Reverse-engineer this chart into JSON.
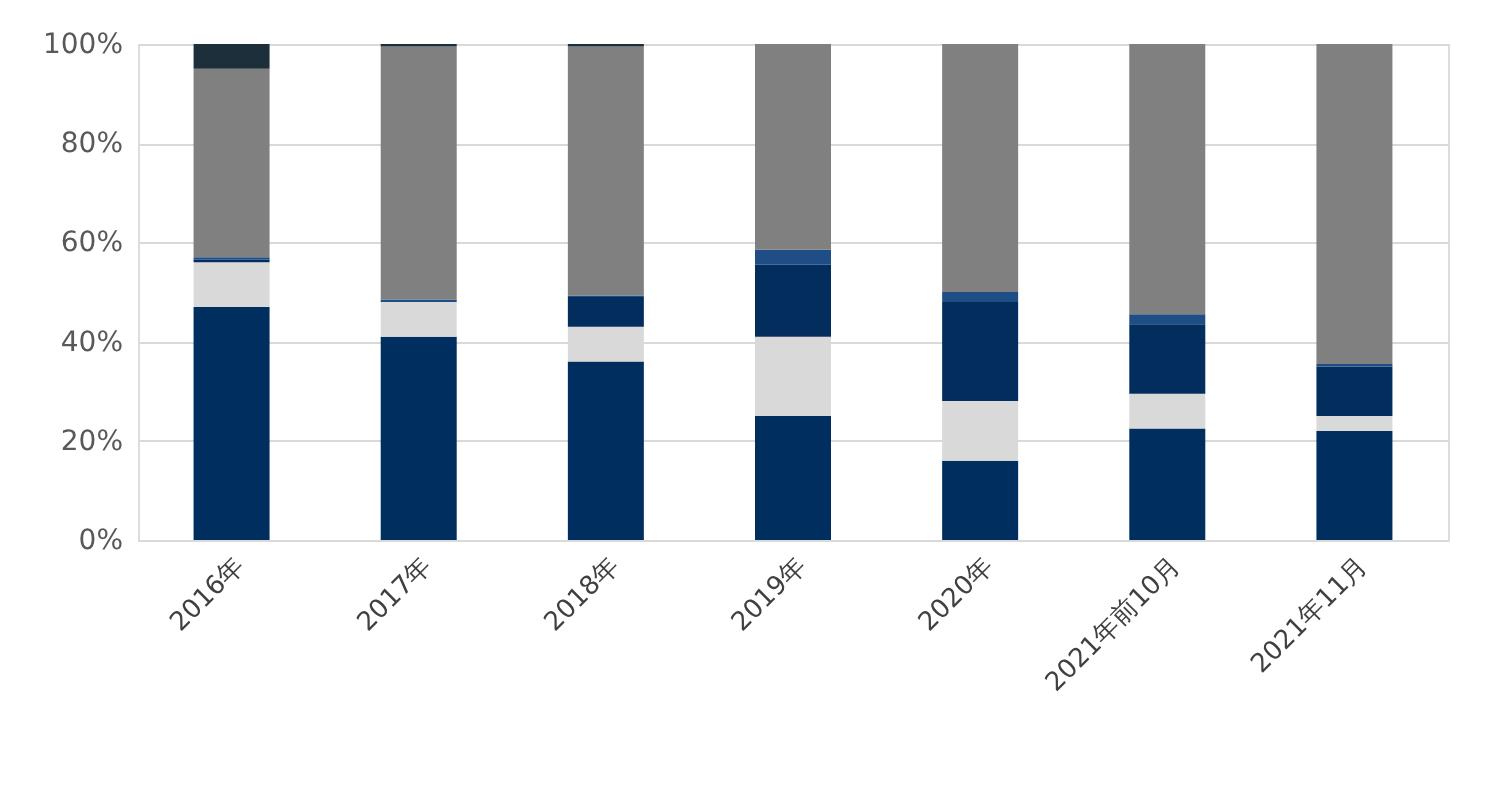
{
  "chart_data": {
    "type": "bar",
    "stacked": true,
    "categories": [
      "2016年",
      "2017年",
      "2018年",
      "2019年",
      "2020年",
      "2021年前10月",
      "2021年11月"
    ],
    "series": [
      {
        "color": "#002f5f",
        "values": [
          47,
          41,
          36,
          25,
          16,
          22.5,
          22
        ]
      },
      {
        "color": "#d9d9d9",
        "values": [
          9,
          7,
          7,
          16,
          12,
          7,
          3
        ]
      },
      {
        "color": "#032d5c",
        "values": [
          0.5,
          0,
          6,
          14.5,
          20,
          14,
          10
        ]
      },
      {
        "color": "#1f4e87",
        "values": [
          0.5,
          0.5,
          0.3,
          3,
          2,
          2,
          0.5
        ]
      },
      {
        "color": "#808080",
        "values": [
          38,
          51,
          50.2,
          41.5,
          50,
          54.5,
          64.5
        ]
      },
      {
        "color": "#1e2f3c",
        "values": [
          5,
          0.5,
          0.5,
          0,
          0,
          0,
          0
        ]
      }
    ],
    "ylim": [
      0,
      100
    ],
    "yticks": [
      {
        "value": 0,
        "label": "0%"
      },
      {
        "value": 20,
        "label": "20%"
      },
      {
        "value": 40,
        "label": "40%"
      },
      {
        "value": 60,
        "label": "60%"
      },
      {
        "value": 80,
        "label": "80%"
      },
      {
        "value": 100,
        "label": "100%"
      }
    ],
    "grid": "y",
    "legend": false
  }
}
